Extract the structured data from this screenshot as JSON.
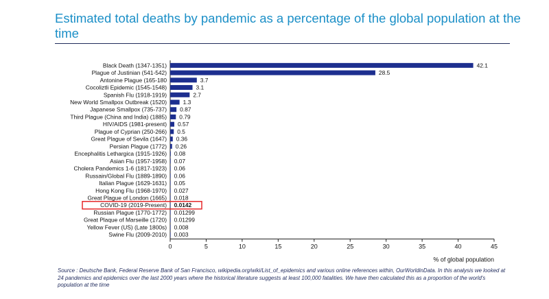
{
  "title": "Estimated total deaths by pandemic as a percentage of the global population at the time",
  "highlight_color": "#e5282a",
  "bar_color": "#1d2f8f",
  "source": {
    "label": "Source :",
    "text": "Deutsche Bank, Federal Reserve Bank of San Francisco, wikipedia.org/wiki/List_of_epidemics and various online references within, OurWorldinData. In this analysis we looked at 24 pandemics and epidemics over the last 2000 years where the historical literature suggests at least 100,000 fatalities. We have then calculated this as a proportion of the world's population at the time"
  },
  "chart_data": {
    "type": "bar",
    "orientation": "horizontal",
    "title": "Estimated total deaths by pandemic as a percentage of the global population at the time",
    "xlabel": "% of global population",
    "ylabel": "",
    "xlim": [
      0,
      45
    ],
    "xticks": [
      0,
      5,
      10,
      15,
      20,
      25,
      30,
      35,
      40,
      45
    ],
    "grid": false,
    "highlighted_category": "COVID-19 (2019-Present)",
    "categories": [
      "Black Death (1347-1351)",
      "Plague of Justinian (541-542)",
      "Antonine Plague (165-180",
      "Cocoliztli Epidemic (1545-1548)",
      "Spanish Flu (1918-1919)",
      "New World Smallpox Outbreak (1520)",
      "Japanese Smallpox (735-737)",
      "Third Plague (China and India) (1885)",
      "HIV/AIDS (1981-present)",
      "Plague of Cyprian (250-266)",
      "Great Plague of Sevila (1647)",
      "Persian Plague (1772)",
      "Encephalitis Lethargica (1915-1926)",
      "Asian Flu (1957-1958)",
      "Cholera Pandemics 1-6 (1817-1923)",
      "Russain/Global Flu (1889-1890)",
      "Italian Plague (1629-1631)",
      "Hong Kong Flu (1968-1970)",
      "Great Plague of London (1665)",
      "COVID-19 (2019-Present)",
      "Russian Plague (1770-1772)",
      "Great Plaque of Marseille (1720)",
      "Yellow Fever (US) (Late 1800s)",
      "Swine Flu (2009-2010)"
    ],
    "values": [
      42.1,
      28.5,
      3.7,
      3.1,
      2.7,
      1.3,
      0.87,
      0.79,
      0.57,
      0.5,
      0.36,
      0.26,
      0.08,
      0.07,
      0.06,
      0.06,
      0.05,
      0.027,
      0.018,
      0.0142,
      0.01299,
      0.01299,
      0.008,
      0.003
    ],
    "value_labels": [
      "42.1",
      "28.5",
      "3.7",
      "3.1",
      "2.7",
      "1.3",
      "0.87",
      "0.79",
      "0.57",
      "0.5",
      "0.36",
      "0.26",
      "0.08",
      "0.07",
      "0.06",
      "0.06",
      "0.05",
      "0.027",
      "0.018",
      "0.0142",
      "0.01299",
      "0.01299",
      "0.008",
      "0.003"
    ]
  }
}
